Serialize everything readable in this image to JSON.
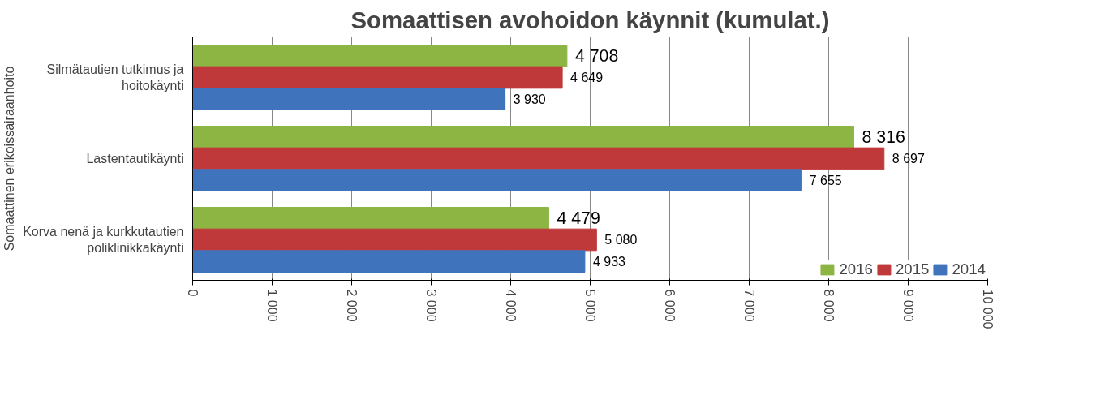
{
  "chart_data": {
    "type": "bar",
    "orientation": "horizontal",
    "title": "Somaattisen avohoidon käynnit (kumulat.)",
    "ylabel": "Somaattinen erikoissairaanhoito",
    "categories": [
      "Silmätautien tutkimus ja hoitokäynti",
      "Lastentautikäynti",
      "Korva nenä ja kurkkutautien poliklinikkakäynti"
    ],
    "series": [
      {
        "name": "2016",
        "color": "#8db544",
        "values": [
          4708,
          8316,
          4479
        ],
        "value_labels": [
          "4 708",
          "8 316",
          "4 479"
        ]
      },
      {
        "name": "2015",
        "color": "#c0393a",
        "values": [
          4649,
          8697,
          5080
        ],
        "value_labels": [
          "4 649",
          "8 697",
          "5 080"
        ]
      },
      {
        "name": "2014",
        "color": "#3f74bd",
        "values": [
          3930,
          7655,
          4933
        ],
        "value_labels": [
          "3 930",
          "7 655",
          "4 933"
        ]
      }
    ],
    "xlim": [
      0,
      10000
    ],
    "xticks": [
      0,
      {
        "value": 1000,
        "label": "1 000"
      },
      {
        "value": 2000,
        "label": "2 000"
      },
      {
        "value": 3000,
        "label": "3 000"
      },
      {
        "value": 4000,
        "label": "4 000"
      },
      {
        "value": 5000,
        "label": "5 000"
      },
      {
        "value": 6000,
        "label": "6 000"
      },
      {
        "value": 7000,
        "label": "7 000"
      },
      {
        "value": 8000,
        "label": "8 000"
      },
      {
        "value": 9000,
        "label": "9 000"
      },
      {
        "value": 10000,
        "label": "10 000"
      }
    ],
    "grid": "x",
    "legend": "bottom right"
  }
}
